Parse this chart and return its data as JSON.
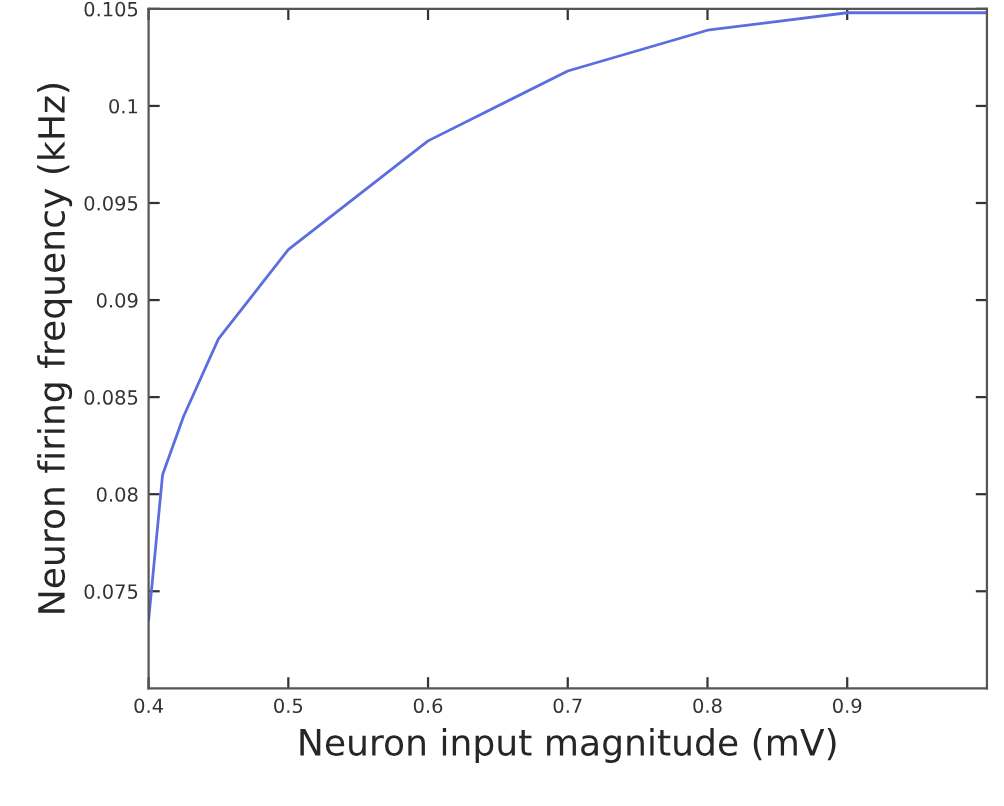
{
  "chart_data": {
    "type": "line",
    "xlabel": "Neuron input magnitude (mV)",
    "ylabel": "Neuron firing frequency (kHz)",
    "x": [
      0.4,
      0.402,
      0.41,
      0.425,
      0.45,
      0.5,
      0.6,
      0.7,
      0.8,
      0.9,
      1.0
    ],
    "series": [
      {
        "color": "#5a6ee0",
        "values": [
          0.0735,
          0.075,
          0.081,
          0.084,
          0.088,
          0.0926,
          0.0982,
          0.1018,
          0.1039,
          0.1048,
          0.1048
        ]
      }
    ],
    "xlim": [
      0.4,
      1.0
    ],
    "xticks": [
      0.4,
      0.5,
      0.6,
      0.7,
      0.8,
      0.9
    ],
    "ylim": [
      0.07,
      0.105
    ],
    "yticks": [
      0.075,
      0.08,
      0.085,
      0.09,
      0.095,
      0.1,
      0.105
    ],
    "grid": false,
    "legend": false,
    "marker": "none",
    "line_style": "solid"
  }
}
